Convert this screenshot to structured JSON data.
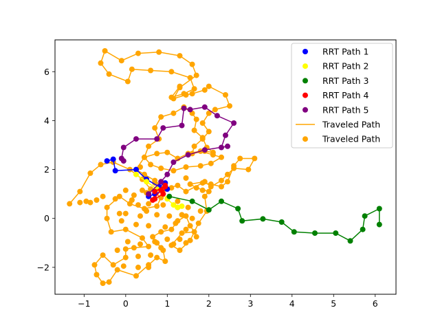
{
  "chart_data": {
    "type": "line",
    "title": "",
    "xlabel": "",
    "ylabel": "",
    "xlim": [
      -1.7,
      6.5
    ],
    "ylim": [
      -3.1,
      7.3
    ],
    "xticks": [
      -1,
      0,
      1,
      2,
      3,
      4,
      5,
      6
    ],
    "yticks": [
      -2,
      0,
      2,
      4,
      6
    ],
    "xtick_labels": [
      "−1",
      "0",
      "1",
      "2",
      "3",
      "4",
      "5",
      "6"
    ],
    "ytick_labels": [
      "−2",
      "0",
      "2",
      "4",
      "6"
    ],
    "grid": false,
    "legend_position": "top-right",
    "series": [
      {
        "name": "RRT Path 1",
        "color": "#0000ff",
        "marker": "circle",
        "line": true,
        "points": [
          [
            -0.45,
            2.35
          ],
          [
            -0.3,
            2.42
          ],
          [
            -0.25,
            1.95
          ],
          [
            0.25,
            2.0
          ],
          [
            0.5,
            1.6
          ],
          [
            0.8,
            1.3
          ],
          [
            0.95,
            1.45
          ],
          [
            1.0,
            1.2
          ],
          [
            0.7,
            1.0
          ],
          [
            0.55,
            0.9
          ]
        ]
      },
      {
        "name": "RRT Path 2",
        "color": "#ffff00",
        "marker": "circle",
        "line": true,
        "points": [
          [
            0.25,
            1.8
          ],
          [
            0.5,
            1.5
          ],
          [
            0.75,
            1.2
          ],
          [
            1.0,
            0.8
          ],
          [
            1.15,
            0.55
          ],
          [
            1.35,
            0.5
          ],
          [
            1.25,
            0.45
          ]
        ]
      },
      {
        "name": "RRT Path 3",
        "color": "#008000",
        "marker": "circle",
        "line": true,
        "points": [
          [
            1.05,
            0.9
          ],
          [
            1.6,
            0.7
          ],
          [
            2.0,
            0.35
          ],
          [
            2.3,
            0.7
          ],
          [
            2.7,
            0.4
          ],
          [
            2.8,
            -0.1
          ],
          [
            3.3,
            -0.02
          ],
          [
            3.75,
            -0.15
          ],
          [
            4.05,
            -0.55
          ],
          [
            4.55,
            -0.6
          ],
          [
            5.05,
            -0.6
          ],
          [
            5.4,
            -0.92
          ],
          [
            5.7,
            -0.45
          ],
          [
            5.75,
            0.1
          ],
          [
            6.1,
            0.4
          ],
          [
            6.1,
            -0.25
          ]
        ]
      },
      {
        "name": "RRT Path 4",
        "color": "#ff0000",
        "marker": "circle",
        "line": true,
        "points": [
          [
            0.65,
            0.75
          ],
          [
            0.85,
            1.15
          ],
          [
            0.95,
            1.35
          ],
          [
            0.7,
            1.1
          ],
          [
            0.95,
            1.3
          ],
          [
            0.9,
            1.0
          ],
          [
            0.7,
            0.8
          ]
        ]
      },
      {
        "name": "RRT Path 5",
        "color": "#800080",
        "marker": "circle",
        "line": true,
        "points": [
          [
            0.55,
            1.0
          ],
          [
            0.85,
            1.5
          ],
          [
            1.0,
            1.8
          ],
          [
            1.15,
            2.3
          ],
          [
            1.5,
            2.6
          ],
          [
            1.9,
            2.8
          ],
          [
            2.45,
            2.95
          ],
          [
            2.3,
            2.9
          ],
          [
            2.4,
            3.4
          ],
          [
            2.6,
            3.9
          ],
          [
            2.2,
            4.2
          ],
          [
            1.9,
            4.55
          ],
          [
            1.55,
            4.45
          ],
          [
            1.4,
            4.5
          ],
          [
            1.35,
            3.8
          ],
          [
            0.9,
            3.7
          ],
          [
            0.75,
            3.25
          ],
          [
            0.25,
            3.25
          ],
          [
            -0.05,
            2.9
          ],
          [
            -0.1,
            2.45
          ],
          [
            -0.05,
            2.35
          ]
        ]
      },
      {
        "name": "Traveled Path",
        "color": "#ffa500",
        "marker": "circle",
        "line": true,
        "points": [
          [
            -1.35,
            0.6
          ],
          [
            -1.1,
            1.1
          ],
          [
            -0.85,
            1.85
          ],
          [
            -0.6,
            2.2
          ],
          [
            -0.3,
            2.3
          ],
          [
            0.1,
            2.0
          ],
          [
            0.4,
            1.6
          ],
          [
            0.6,
            1.2
          ],
          [
            0.85,
            0.85
          ],
          [
            0.75,
            0.5
          ],
          [
            0.45,
            0.4
          ],
          [
            0.1,
            0.6
          ],
          [
            -0.15,
            0.9
          ],
          [
            -0.45,
            0.45
          ],
          [
            -0.45,
            0.0
          ],
          [
            -0.35,
            -0.55
          ],
          [
            0.0,
            -0.45
          ],
          [
            0.4,
            -0.8
          ],
          [
            0.55,
            -1.15
          ],
          [
            0.2,
            -1.2
          ],
          [
            0.0,
            -1.25
          ],
          [
            0.0,
            -1.6
          ],
          [
            -0.3,
            -1.9
          ],
          [
            -0.55,
            -1.5
          ],
          [
            -0.75,
            -1.9
          ],
          [
            -0.7,
            -2.3
          ],
          [
            -0.55,
            -2.65
          ],
          [
            -0.4,
            -2.6
          ],
          [
            -0.2,
            -2.1
          ],
          [
            0.25,
            -2.35
          ],
          [
            0.55,
            -1.9
          ],
          [
            0.75,
            -1.6
          ],
          [
            0.95,
            -1.75
          ],
          [
            0.9,
            -1.3
          ],
          [
            0.75,
            -1.0
          ],
          [
            0.65,
            -0.75
          ],
          [
            0.85,
            -0.55
          ],
          [
            1.1,
            -0.45
          ],
          [
            1.25,
            -0.1
          ],
          [
            1.45,
            0.1
          ],
          [
            1.55,
            -0.3
          ],
          [
            1.65,
            -0.55
          ],
          [
            1.35,
            -0.6
          ],
          [
            1.1,
            -1.1
          ],
          [
            1.3,
            -1.3
          ],
          [
            1.55,
            -0.9
          ],
          [
            1.75,
            -0.2
          ],
          [
            1.95,
            0.3
          ],
          [
            1.9,
            0.9
          ],
          [
            2.0,
            1.1
          ],
          [
            1.7,
            1.25
          ],
          [
            1.55,
            1.4
          ],
          [
            1.9,
            1.5
          ],
          [
            2.05,
            1.3
          ],
          [
            2.3,
            1.55
          ],
          [
            2.45,
            1.8
          ],
          [
            2.6,
            2.05
          ],
          [
            2.95,
            2.0
          ],
          [
            3.1,
            2.45
          ],
          [
            2.75,
            2.45
          ],
          [
            2.6,
            2.15
          ],
          [
            2.45,
            1.5
          ],
          [
            2.3,
            1.3
          ],
          [
            2.05,
            1.4
          ],
          [
            1.85,
            1.45
          ],
          [
            1.45,
            1.1
          ],
          [
            1.25,
            1.35
          ],
          [
            0.95,
            1.2
          ],
          [
            0.7,
            1.55
          ],
          [
            0.45,
            1.8
          ],
          [
            0.25,
            2.0
          ],
          [
            0.45,
            2.5
          ],
          [
            0.75,
            2.65
          ],
          [
            1.0,
            2.7
          ],
          [
            1.25,
            2.45
          ],
          [
            1.5,
            2.65
          ],
          [
            1.8,
            2.75
          ],
          [
            2.1,
            2.6
          ],
          [
            2.3,
            2.5
          ],
          [
            2.05,
            2.25
          ],
          [
            1.8,
            2.15
          ],
          [
            1.45,
            2.1
          ],
          [
            1.15,
            1.95
          ],
          [
            0.85,
            2.05
          ],
          [
            0.6,
            2.2
          ],
          [
            0.45,
            2.5
          ],
          [
            0.55,
            2.95
          ],
          [
            0.8,
            3.25
          ],
          [
            0.7,
            3.7
          ],
          [
            0.85,
            4.15
          ],
          [
            1.15,
            4.3
          ],
          [
            1.4,
            4.55
          ],
          [
            1.6,
            4.3
          ],
          [
            1.7,
            4.05
          ],
          [
            1.65,
            3.6
          ],
          [
            1.85,
            3.3
          ],
          [
            1.95,
            2.9
          ],
          [
            2.1,
            2.7
          ],
          [
            1.9,
            2.75
          ],
          [
            1.6,
            2.65
          ],
          [
            1.65,
            2.95
          ],
          [
            1.85,
            3.25
          ],
          [
            2.0,
            3.55
          ],
          [
            1.85,
            3.9
          ],
          [
            2.0,
            4.3
          ],
          [
            2.15,
            4.45
          ],
          [
            2.5,
            4.6
          ],
          [
            2.4,
            5.05
          ],
          [
            2.0,
            5.4
          ],
          [
            1.9,
            5.25
          ],
          [
            1.6,
            5.1
          ],
          [
            1.45,
            5.05
          ],
          [
            1.15,
            4.9
          ],
          [
            1.3,
            5.35
          ],
          [
            1.7,
            5.85
          ],
          [
            1.6,
            6.3
          ],
          [
            1.3,
            6.65
          ],
          [
            0.8,
            6.8
          ],
          [
            0.3,
            6.75
          ],
          [
            -0.1,
            6.45
          ],
          [
            -0.5,
            6.85
          ],
          [
            -0.6,
            6.35
          ],
          [
            -0.4,
            5.9
          ],
          [
            0.05,
            5.6
          ],
          [
            0.15,
            6.1
          ],
          [
            0.6,
            6.05
          ],
          [
            1.1,
            6.0
          ],
          [
            1.55,
            5.75
          ],
          [
            1.65,
            5.3
          ],
          [
            1.4,
            5.1
          ],
          [
            1.1,
            4.95
          ],
          [
            1.3,
            5.4
          ]
        ]
      },
      {
        "name": "Traveled Path",
        "color": "#ffa500",
        "marker": "circle",
        "line": false,
        "points": [
          [
            -0.95,
            0.7
          ],
          [
            -0.7,
            0.75
          ],
          [
            -1.1,
            0.65
          ],
          [
            -0.85,
            0.65
          ],
          [
            -0.55,
            0.9
          ],
          [
            -0.25,
            0.8
          ],
          [
            0.0,
            1.15
          ],
          [
            0.2,
            0.95
          ],
          [
            0.4,
            1.15
          ],
          [
            0.3,
            0.55
          ],
          [
            0.55,
            0.6
          ],
          [
            0.9,
            0.55
          ],
          [
            1.25,
            0.7
          ],
          [
            1.5,
            0.45
          ],
          [
            1.35,
            0.15
          ],
          [
            1.05,
            0.1
          ],
          [
            0.75,
            0.15
          ],
          [
            0.5,
            0.3
          ],
          [
            0.35,
            0.1
          ],
          [
            0.0,
            0.2
          ],
          [
            -0.1,
            -0.1
          ],
          [
            0.25,
            -0.25
          ],
          [
            0.55,
            -0.3
          ],
          [
            0.95,
            -0.35
          ],
          [
            1.2,
            -0.2
          ],
          [
            1.45,
            -0.45
          ],
          [
            1.7,
            -0.75
          ],
          [
            1.3,
            -0.85
          ],
          [
            1.0,
            -0.85
          ],
          [
            0.7,
            -0.95
          ],
          [
            0.35,
            -1.05
          ],
          [
            0.05,
            -0.95
          ],
          [
            -0.2,
            -1.3
          ],
          [
            0.3,
            -1.55
          ],
          [
            0.6,
            -1.5
          ],
          [
            0.85,
            -1.2
          ],
          [
            1.15,
            -1.05
          ],
          [
            1.45,
            -1.0
          ],
          [
            0.55,
            -2.0
          ],
          [
            0.3,
            -2.0
          ],
          [
            -0.05,
            -1.95
          ],
          [
            1.6,
            0.0
          ],
          [
            1.8,
            0.3
          ],
          [
            1.25,
            0.45
          ],
          [
            0.15,
            0.75
          ],
          [
            -0.15,
            0.2
          ],
          [
            0.5,
            1.05
          ],
          [
            1.1,
            1.25
          ],
          [
            1.45,
            1.65
          ],
          [
            1.85,
            1.15
          ],
          [
            0.7,
            1.45
          ],
          [
            0.35,
            2.1
          ]
        ]
      }
    ]
  },
  "legend": {
    "entries": [
      {
        "label": "RRT Path 1",
        "color": "#0000ff",
        "kind": "marker"
      },
      {
        "label": "RRT Path 2",
        "color": "#ffff00",
        "kind": "marker"
      },
      {
        "label": "RRT Path 3",
        "color": "#008000",
        "kind": "marker"
      },
      {
        "label": "RRT Path 4",
        "color": "#ff0000",
        "kind": "marker"
      },
      {
        "label": "RRT Path 5",
        "color": "#800080",
        "kind": "marker"
      },
      {
        "label": "Traveled Path",
        "color": "#ffa500",
        "kind": "line"
      },
      {
        "label": "Traveled Path",
        "color": "#ffa500",
        "kind": "marker"
      }
    ]
  }
}
